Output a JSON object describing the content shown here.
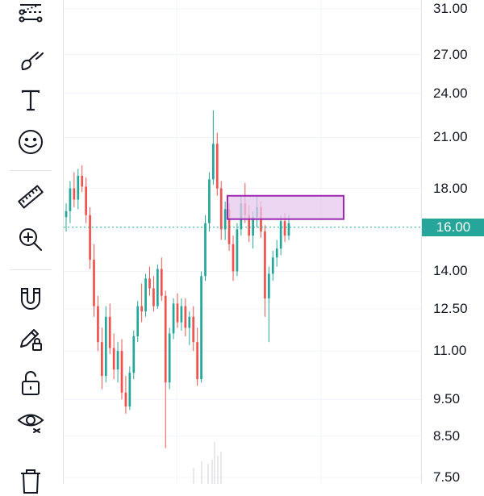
{
  "colors": {
    "up": "#26a69a",
    "down": "#ef5350",
    "accent": "#9c27b0",
    "zone_fill": "#e6c8ec",
    "current_line": "#22ab94",
    "grid": "#f0f3fa",
    "icon": "#131722"
  },
  "toolbar": {
    "tools": [
      {
        "name": "pattern-tool-icon"
      },
      {
        "name": "brush-icon"
      },
      {
        "name": "text-tool-icon"
      },
      {
        "name": "emoji-icon"
      },
      {
        "name": "ruler-icon"
      },
      {
        "name": "zoom-in-icon"
      },
      {
        "name": "magnet-icon"
      },
      {
        "name": "pencil-lock-icon"
      },
      {
        "name": "lock-icon"
      },
      {
        "name": "eye-icon"
      },
      {
        "name": "trash-icon"
      }
    ]
  },
  "price_scale": {
    "labels": [
      "31.00",
      "27.00",
      "24.00",
      "21.00",
      "18.00",
      "14.00",
      "12.50",
      "11.00",
      "9.50",
      "8.50",
      "7.50"
    ],
    "current_price": "16.00"
  },
  "chart_data": {
    "type": "candlestick",
    "scale": "log",
    "current_price": 16.0,
    "y_range": [
      7.3,
      32.5
    ],
    "zone": {
      "low": 16.4,
      "high": 17.6
    },
    "candles_approx": [
      [
        16.5,
        17.2,
        15.8,
        16.8
      ],
      [
        16.8,
        18.4,
        16.2,
        18.0
      ],
      [
        18.0,
        18.9,
        17.0,
        17.4
      ],
      [
        17.4,
        19.1,
        16.9,
        18.7
      ],
      [
        18.7,
        19.3,
        17.8,
        18.1
      ],
      [
        18.1,
        18.6,
        16.2,
        16.6
      ],
      [
        16.6,
        17.0,
        14.1,
        14.5
      ],
      [
        14.5,
        15.2,
        12.2,
        12.6
      ],
      [
        12.6,
        13.0,
        11.0,
        11.3
      ],
      [
        11.3,
        11.8,
        9.8,
        10.2
      ],
      [
        10.2,
        12.6,
        10.0,
        12.2
      ],
      [
        12.2,
        12.7,
        10.9,
        11.1
      ],
      [
        11.1,
        11.6,
        10.1,
        10.4
      ],
      [
        10.4,
        11.3,
        10.0,
        11.0
      ],
      [
        11.0,
        11.4,
        9.5,
        9.7
      ],
      [
        9.7,
        10.2,
        9.1,
        9.3
      ],
      [
        9.3,
        10.5,
        9.2,
        10.3
      ],
      [
        10.3,
        11.7,
        10.1,
        11.5
      ],
      [
        11.5,
        12.8,
        11.3,
        12.6
      ],
      [
        12.6,
        13.5,
        12.0,
        12.4
      ],
      [
        12.4,
        13.9,
        12.2,
        13.7
      ],
      [
        13.7,
        14.2,
        13.0,
        13.3
      ],
      [
        13.3,
        13.8,
        12.4,
        12.6
      ],
      [
        12.6,
        14.3,
        12.5,
        14.1
      ],
      [
        14.1,
        14.6,
        12.8,
        13.0
      ],
      [
        13.0,
        13.2,
        8.2,
        10.0
      ],
      [
        10.0,
        11.8,
        9.8,
        11.6
      ],
      [
        11.6,
        12.9,
        11.4,
        12.7
      ],
      [
        12.7,
        13.1,
        11.8,
        12.0
      ],
      [
        12.0,
        12.9,
        11.7,
        12.6
      ],
      [
        12.6,
        12.9,
        11.5,
        11.8
      ],
      [
        11.8,
        12.4,
        11.2,
        12.2
      ],
      [
        12.2,
        12.6,
        11.0,
        11.3
      ],
      [
        11.3,
        11.8,
        9.9,
        10.1
      ],
      [
        10.1,
        14.0,
        10.0,
        13.8
      ],
      [
        13.8,
        16.6,
        13.6,
        16.2
      ],
      [
        16.2,
        18.9,
        15.8,
        18.5
      ],
      [
        18.5,
        22.8,
        18.2,
        20.6
      ],
      [
        20.6,
        21.3,
        17.6,
        18.0
      ],
      [
        18.0,
        18.4,
        15.4,
        15.9
      ],
      [
        15.9,
        17.3,
        15.4,
        16.9
      ],
      [
        16.9,
        17.2,
        14.9,
        15.2
      ],
      [
        15.2,
        15.6,
        13.6,
        14.0
      ],
      [
        14.0,
        16.2,
        13.8,
        15.9
      ],
      [
        15.9,
        17.6,
        15.6,
        17.2
      ],
      [
        17.2,
        18.3,
        16.2,
        16.6
      ],
      [
        16.6,
        17.1,
        15.3,
        15.6
      ],
      [
        15.6,
        16.8,
        15.0,
        16.5
      ],
      [
        16.5,
        17.6,
        16.0,
        17.0
      ],
      [
        17.0,
        17.3,
        15.5,
        15.8
      ],
      [
        15.8,
        16.1,
        12.2,
        12.9
      ],
      [
        12.9,
        14.2,
        11.3,
        13.9
      ],
      [
        13.9,
        14.9,
        13.6,
        14.6
      ],
      [
        14.6,
        15.4,
        14.2,
        15.0
      ],
      [
        15.0,
        16.6,
        14.7,
        16.3
      ],
      [
        16.3,
        16.7,
        15.3,
        15.6
      ],
      [
        15.6,
        16.6,
        15.4,
        16.2
      ]
    ]
  }
}
